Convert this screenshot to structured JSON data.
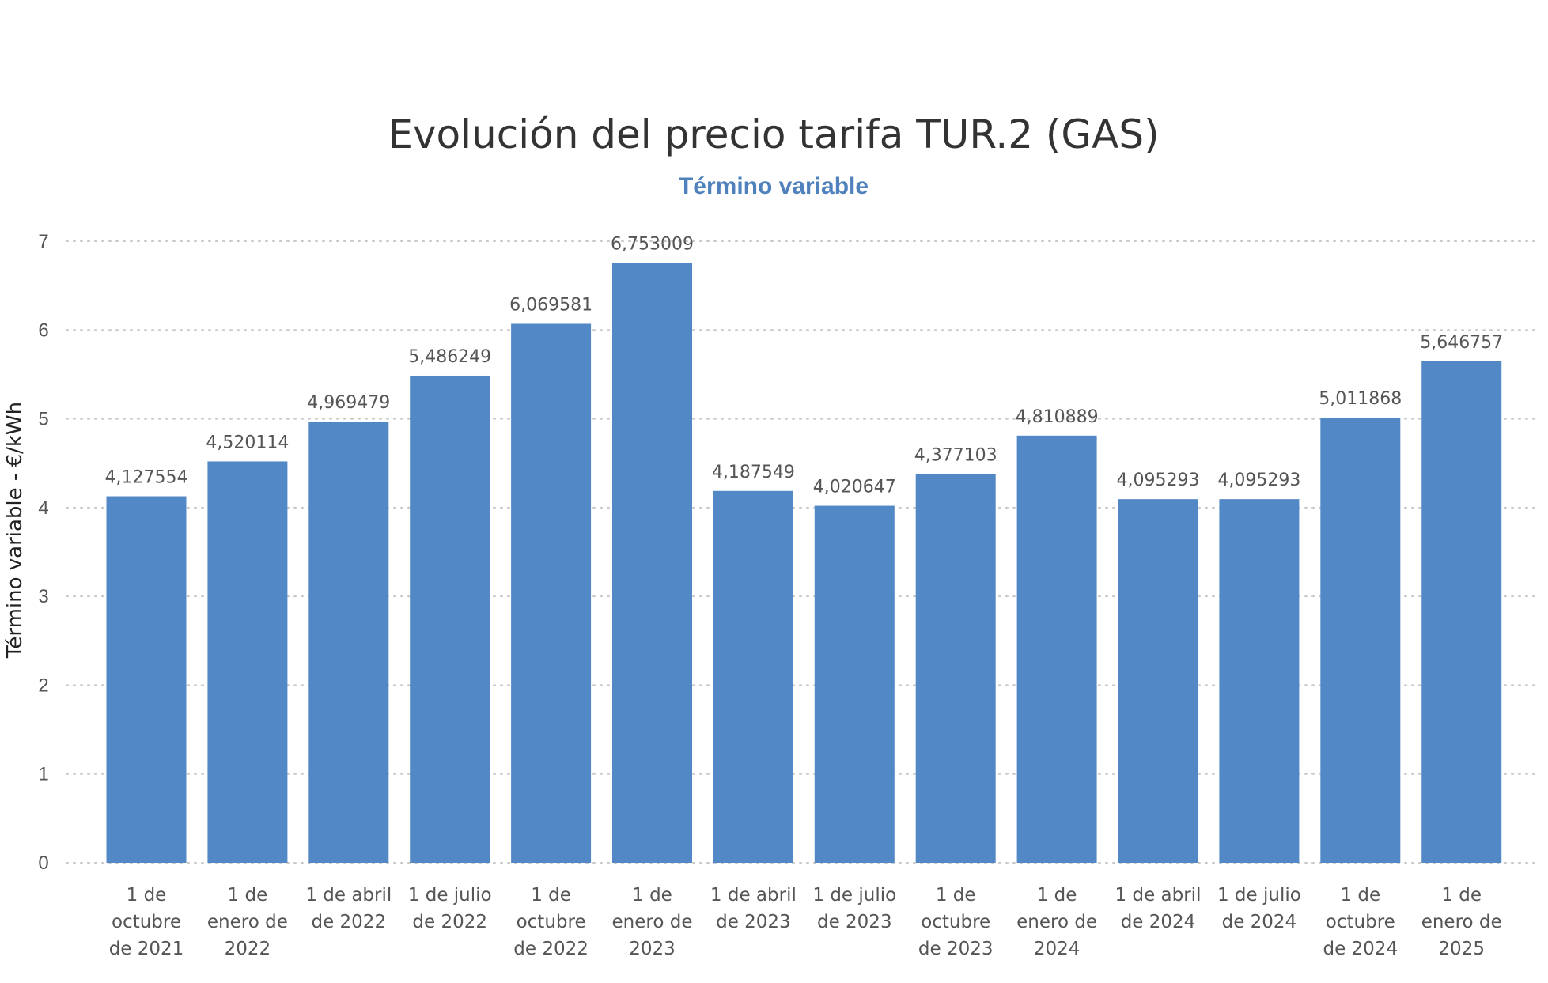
{
  "chart_data": {
    "type": "bar",
    "title": "Evolución del precio tarifa TUR.2 (GAS)",
    "subtitle": "Término variable",
    "ylabel": "Término variable - €/kWh",
    "xlabel": "",
    "ylim": [
      0,
      7
    ],
    "yticks": [
      "0",
      "1",
      "2",
      "3",
      "4",
      "5",
      "6",
      "7"
    ],
    "grid": true,
    "bar_color": "#5388C7",
    "subtitle_color": "#4F81BD",
    "categories": [
      [
        "1 de",
        "octubre",
        "de 2021"
      ],
      [
        "1 de",
        "enero de",
        "2022"
      ],
      [
        "1 de abril",
        "de 2022"
      ],
      [
        "1 de julio",
        "de 2022"
      ],
      [
        "1 de",
        "octubre",
        "de 2022"
      ],
      [
        "1 de",
        "enero de",
        "2023"
      ],
      [
        "1 de abril",
        "de 2023"
      ],
      [
        "1 de julio",
        "de 2023"
      ],
      [
        "1 de",
        "octubre",
        "de 2023"
      ],
      [
        "1 de",
        "enero de",
        "2024"
      ],
      [
        "1 de abril",
        "de 2024"
      ],
      [
        "1 de julio",
        "de 2024"
      ],
      [
        "1 de",
        "octubre",
        "de 2024"
      ],
      [
        "1 de",
        "enero de",
        "2025"
      ]
    ],
    "values": [
      4.127554,
      4.520114,
      4.969479,
      5.486249,
      6.069581,
      6.753009,
      4.187549,
      4.020647,
      4.377103,
      4.810889,
      4.095293,
      4.095293,
      5.011868,
      5.646757
    ],
    "value_labels": [
      "4,127554",
      "4,520114",
      "4,969479",
      "5,486249",
      "6,069581",
      "6,753009",
      "4,187549",
      "4,020647",
      "4,377103",
      "4,810889",
      "4,095293",
      "4,095293",
      "5,011868",
      "5,646757"
    ]
  }
}
